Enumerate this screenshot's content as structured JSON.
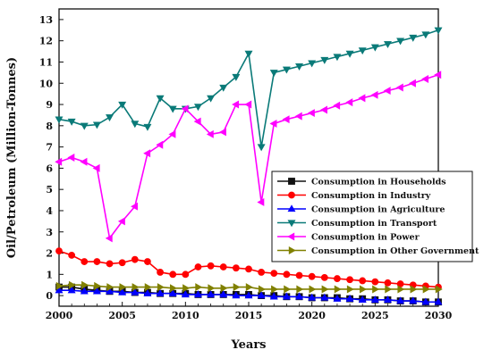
{
  "chart_data": {
    "type": "line",
    "title": "",
    "xlabel": "Years",
    "ylabel": "Oil/Petroleum (Million-Tonnes)",
    "xlim": [
      2000,
      2030
    ],
    "ylim": [
      -0.5,
      13.5
    ],
    "xticks": [
      2000,
      2005,
      2010,
      2015,
      2020,
      2025,
      2030
    ],
    "yticks": [
      0,
      1,
      2,
      3,
      4,
      5,
      6,
      7,
      8,
      9,
      10,
      11,
      12,
      13
    ],
    "grid": false,
    "legend_position": "middle-right",
    "x": [
      2000,
      2001,
      2002,
      2003,
      2004,
      2005,
      2006,
      2007,
      2008,
      2009,
      2010,
      2011,
      2012,
      2013,
      2014,
      2015,
      2016,
      2017,
      2018,
      2019,
      2020,
      2021,
      2022,
      2023,
      2024,
      2025,
      2026,
      2027,
      2028,
      2029,
      2030
    ],
    "series": [
      {
        "name": "Consumption in Households",
        "color": "#111111",
        "marker": "square",
        "values": [
          0.4,
          0.4,
          0.3,
          0.25,
          0.2,
          0.2,
          0.15,
          0.15,
          0.1,
          0.1,
          0.1,
          0.05,
          0.05,
          0.05,
          0.05,
          0.05,
          0.0,
          0.0,
          -0.05,
          -0.05,
          -0.1,
          -0.1,
          -0.1,
          -0.15,
          -0.15,
          -0.2,
          -0.2,
          -0.25,
          -0.25,
          -0.3,
          -0.3
        ]
      },
      {
        "name": "Consumption in Industry",
        "color": "#ff0000",
        "marker": "circle",
        "values": [
          2.1,
          1.9,
          1.6,
          1.6,
          1.5,
          1.55,
          1.7,
          1.6,
          1.1,
          1.0,
          1.0,
          1.35,
          1.4,
          1.35,
          1.3,
          1.25,
          1.1,
          1.05,
          1.0,
          0.95,
          0.9,
          0.85,
          0.8,
          0.75,
          0.7,
          0.65,
          0.6,
          0.55,
          0.5,
          0.45,
          0.4
        ]
      },
      {
        "name": "Consumption in Agriculture",
        "color": "#0000ff",
        "marker": "triangle-up",
        "values": [
          0.25,
          0.25,
          0.2,
          0.2,
          0.2,
          0.15,
          0.15,
          0.1,
          0.1,
          0.1,
          0.05,
          0.05,
          0.05,
          0.05,
          0.0,
          0.0,
          0.0,
          -0.05,
          -0.05,
          -0.05,
          -0.1,
          -0.1,
          -0.15,
          -0.15,
          -0.2,
          -0.2,
          -0.2,
          -0.25,
          -0.25,
          -0.3,
          -0.3
        ]
      },
      {
        "name": "Consumption in Transport",
        "color": "#0a7a78",
        "marker": "triangle-down",
        "values": [
          8.3,
          8.2,
          8.0,
          8.05,
          8.4,
          9.0,
          8.1,
          7.95,
          9.3,
          8.8,
          8.8,
          8.9,
          9.3,
          9.8,
          10.3,
          11.4,
          7.0,
          10.5,
          10.65,
          10.8,
          10.95,
          11.1,
          11.25,
          11.4,
          11.55,
          11.7,
          11.85,
          12.0,
          12.15,
          12.3,
          12.5
        ]
      },
      {
        "name": "Consumption in Power",
        "color": "#ff00ff",
        "marker": "triangle-left",
        "values": [
          6.3,
          6.5,
          6.3,
          6.0,
          2.7,
          3.5,
          4.2,
          6.7,
          7.1,
          7.6,
          8.8,
          8.2,
          7.6,
          7.7,
          9.0,
          9.0,
          4.4,
          8.1,
          8.3,
          8.45,
          8.6,
          8.75,
          8.95,
          9.1,
          9.3,
          9.45,
          9.65,
          9.8,
          10.0,
          10.2,
          10.4
        ]
      },
      {
        "name": "Consumption in Other Government",
        "color": "#808000",
        "marker": "triangle-right",
        "values": [
          0.45,
          0.5,
          0.5,
          0.45,
          0.4,
          0.4,
          0.4,
          0.4,
          0.4,
          0.35,
          0.35,
          0.4,
          0.35,
          0.35,
          0.4,
          0.4,
          0.3,
          0.3,
          0.3,
          0.3,
          0.3,
          0.3,
          0.3,
          0.3,
          0.3,
          0.3,
          0.3,
          0.3,
          0.3,
          0.3,
          0.3
        ]
      }
    ]
  }
}
